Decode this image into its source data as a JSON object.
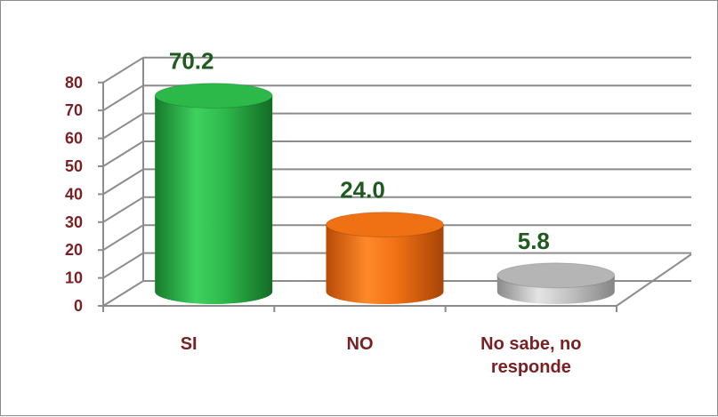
{
  "chart_data": {
    "type": "bar",
    "style": "3d-cylinder",
    "title": "",
    "xlabel": "",
    "ylabel": "",
    "categories": [
      "SI",
      "NO",
      "No sabe, no responde"
    ],
    "category_lines": [
      [
        "SI"
      ],
      [
        "NO"
      ],
      [
        "No sabe, no",
        "responde"
      ]
    ],
    "values": [
      70.2,
      24.0,
      5.8
    ],
    "data_labels": [
      "70.2",
      "24.0",
      "5.8"
    ],
    "ylim": [
      0,
      80
    ],
    "yticks": [
      "0",
      "10",
      "20",
      "30",
      "40",
      "50",
      "60",
      "70",
      "80"
    ],
    "grid": true,
    "legend": "none",
    "colors": {
      "SI": "#2db84a",
      "NO": "#f07014",
      "No sabe, no responde": "#b5b5b5",
      "tick_labels": "#7a1f22",
      "data_labels": "#1f5a1f",
      "grid": "#8c8c8c"
    }
  }
}
